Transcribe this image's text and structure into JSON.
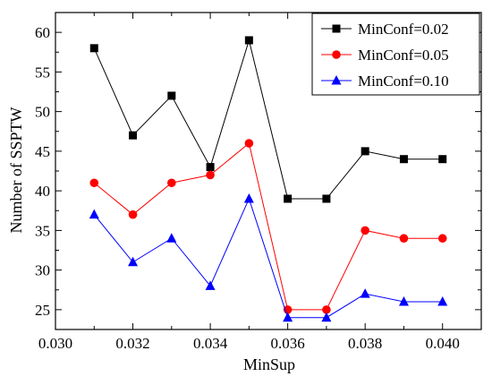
{
  "chart_data": {
    "type": "line",
    "xlabel": "MinSup",
    "ylabel": "Number of SSPTW",
    "xlim": [
      0.03,
      0.041
    ],
    "ylim": [
      22.5,
      62.5
    ],
    "x_ticks": [
      "0.030",
      "0.032",
      "0.034",
      "0.036",
      "0.038",
      "0.040"
    ],
    "y_ticks": [
      "25",
      "30",
      "35",
      "40",
      "45",
      "50",
      "55",
      "60"
    ],
    "x": [
      0.031,
      0.032,
      0.033,
      0.034,
      0.035,
      0.036,
      0.037,
      0.038,
      0.039,
      0.04
    ],
    "grid": false,
    "legend_position": "top-right",
    "series": [
      {
        "name": "MinConf=0.02",
        "color": "#000000",
        "marker": "square",
        "values": [
          58,
          47,
          52,
          43,
          59,
          39,
          39,
          45,
          44,
          44
        ]
      },
      {
        "name": "MinConf=0.05",
        "color": "#ff0000",
        "marker": "circle",
        "values": [
          41,
          37,
          41,
          42,
          46,
          25,
          25,
          35,
          34,
          34
        ]
      },
      {
        "name": "MinConf=0.10",
        "color": "#0000ff",
        "marker": "triangle",
        "values": [
          37,
          31,
          34,
          28,
          39,
          24,
          24,
          27,
          26,
          26
        ]
      }
    ]
  }
}
